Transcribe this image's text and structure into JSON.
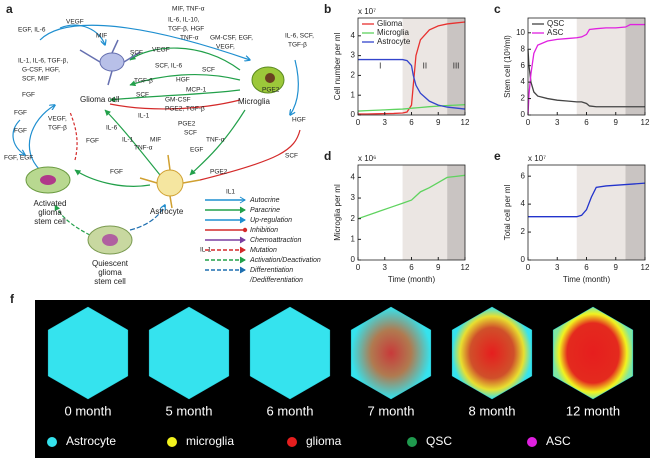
{
  "diagram": {
    "panel_label": "a",
    "nodes": {
      "glioma": "Glioma cell",
      "microglia": "Microglia",
      "astrocyte": "Astrocyte",
      "activated": [
        "Activated",
        "glioma",
        "stem cell"
      ],
      "quiescent": [
        "Quiescent",
        "glioma",
        "stem cell"
      ]
    },
    "edge_labels": [
      "MIF, TNF-α",
      "EGF, IL-6",
      "VEGF",
      "MIF",
      "IL-6, IL-10,",
      "TGF-β, HGF",
      "TNF-α",
      "GM-CSF, EGF,",
      "VEGF,",
      "IL-6, SCF,",
      "TGF-β",
      "IL-1, IL-6, TGF-β,",
      "G-CSF, HGF,",
      "SCF, MIF",
      "SCF",
      "VEGF",
      "SCF",
      "SCF, IL-6",
      "TGF-β",
      "HGF",
      "MCP-1",
      "SCF",
      "GM-CSF",
      "PGE2, TGF-β",
      "IL-1",
      "PGE2",
      "SCF",
      "PGE2",
      "HGF",
      "SCF",
      "FGF",
      "FGF",
      "FGF, EGF",
      "VEGF,",
      "TGF-β",
      "FGF",
      "IL-6",
      "IL-1",
      "TNF-α",
      "MIF",
      "EGF",
      "TNF-α",
      "PGE2",
      "IL1",
      "FGF",
      "IL-1",
      "FGF"
    ],
    "legend": [
      {
        "label": "Autocrine",
        "color": "#1f8fd0"
      },
      {
        "label": "Paracrine",
        "color": "#22a04a"
      },
      {
        "label": "Up-regulation",
        "color": "#1f8fd0"
      },
      {
        "label": "Inhibition",
        "color": "#d42a2a"
      },
      {
        "label": "Chemoattraction",
        "color": "#7a3fa0"
      },
      {
        "label": "Mutation",
        "color": "#d42a2a"
      },
      {
        "label": "Activation/Deactivation",
        "color": "#22a04a"
      },
      {
        "label": "Differentiation",
        "color": "#1f6fb0"
      }
    ],
    "legend_continuation": "/Dedifferentiation"
  },
  "chart_data": [
    {
      "type": "line",
      "panel_label": "b",
      "y_label": "Cell number per ml",
      "y_multiplier": "x 10⁷",
      "x": [
        0,
        1,
        2,
        3,
        4,
        5,
        5.5,
        6,
        6.2,
        6.5,
        7,
        8,
        9,
        10,
        11,
        12
      ],
      "series": [
        {
          "name": "Glioma",
          "color": "#e8312f",
          "values": [
            0.05,
            0.05,
            0.06,
            0.07,
            0.08,
            0.1,
            0.15,
            0.5,
            1.5,
            3.0,
            3.8,
            4.3,
            4.5,
            4.6,
            4.65,
            4.7
          ]
        },
        {
          "name": "Microglia",
          "color": "#5fd35f",
          "values": [
            0.2,
            0.22,
            0.24,
            0.26,
            0.28,
            0.3,
            0.32,
            0.34,
            0.35,
            0.36,
            0.38,
            0.42,
            0.45,
            0.48,
            0.5,
            0.52
          ]
        },
        {
          "name": "Astrocyte",
          "color": "#3344cc",
          "values": [
            2.8,
            2.8,
            2.8,
            2.8,
            2.8,
            2.8,
            2.75,
            2.5,
            2.0,
            1.5,
            1.1,
            0.7,
            0.5,
            0.4,
            0.35,
            0.3
          ]
        }
      ],
      "xlim": [
        0,
        12
      ],
      "xticks": [
        0,
        3,
        6,
        9,
        12
      ],
      "ylim": [
        0,
        4.9
      ],
      "yticks": [
        0,
        1,
        2,
        3,
        4
      ],
      "shaded_regions": [
        [
          5,
          10
        ],
        [
          10,
          12
        ]
      ],
      "shade_colors": [
        "#ebe6e3",
        "#c9c4c2"
      ],
      "annotations": [
        "I",
        "II",
        "III"
      ],
      "legend": "upper left"
    },
    {
      "type": "line",
      "panel_label": "c",
      "y_label": "Stem cell (10³/ml)",
      "x": [
        0,
        0.1,
        0.3,
        0.6,
        1,
        2,
        3,
        4,
        5,
        5.5,
        6,
        6.3,
        7,
        8,
        9,
        10,
        10.5,
        11,
        12
      ],
      "series": [
        {
          "name": "QSC",
          "color": "#444444",
          "values": [
            8,
            6,
            4,
            2.8,
            2.3,
            2,
            1.8,
            1.7,
            1.6,
            1.6,
            1.4,
            1.1,
            1.0,
            1.0,
            1.0,
            1.0,
            1.0,
            1.0,
            1.0
          ]
        },
        {
          "name": "ASC",
          "color": "#e020e0",
          "values": [
            0,
            2.5,
            5,
            7.5,
            8.5,
            9,
            9.2,
            9.3,
            9.4,
            9.5,
            9.8,
            10.4,
            10.5,
            10.6,
            10.6,
            10.7,
            11.0,
            11.0,
            11.0
          ]
        }
      ],
      "xlim": [
        0,
        12
      ],
      "xticks": [
        0,
        3,
        6,
        9,
        12
      ],
      "ylim": [
        0,
        11.8
      ],
      "yticks": [
        0,
        2,
        4,
        6,
        8,
        10
      ],
      "shaded_regions": [
        [
          5,
          10
        ],
        [
          10,
          12
        ]
      ],
      "shade_colors": [
        "#ebe6e3",
        "#c9c4c2"
      ],
      "legend": "upper left"
    },
    {
      "type": "line",
      "panel_label": "d",
      "y_label": "Microglia per ml",
      "y_multiplier": "x 10⁶",
      "x_label": "Time (month)",
      "x": [
        0,
        2,
        4,
        5,
        6,
        7,
        8,
        9,
        10,
        11,
        12
      ],
      "series": [
        {
          "color": "#5fd35f",
          "values": [
            2.0,
            2.3,
            2.6,
            2.75,
            2.9,
            3.3,
            3.5,
            3.75,
            4.0,
            4.05,
            4.1
          ]
        }
      ],
      "xlim": [
        0,
        12
      ],
      "xticks": [
        0,
        3,
        6,
        9,
        12
      ],
      "ylim": [
        0,
        4.6
      ],
      "yticks": [
        0,
        1,
        2,
        3,
        4
      ],
      "shaded_regions": [
        [
          5,
          10
        ],
        [
          10,
          12
        ]
      ],
      "shade_colors": [
        "#ebe6e3",
        "#c9c4c2"
      ]
    },
    {
      "type": "line",
      "panel_label": "e",
      "y_label": "Total cell per ml",
      "y_multiplier": "x 10⁷",
      "x_label": "Time (month)",
      "x": [
        0,
        2,
        4,
        5,
        5.5,
        6,
        6.5,
        7,
        8,
        10,
        12
      ],
      "series": [
        {
          "color": "#2233cc",
          "values": [
            3.1,
            3.1,
            3.1,
            3.1,
            3.2,
            3.6,
            4.5,
            5.2,
            5.3,
            5.4,
            5.5
          ]
        }
      ],
      "xlim": [
        0,
        12
      ],
      "xticks": [
        0,
        3,
        6,
        9,
        12
      ],
      "ylim": [
        0,
        6.8
      ],
      "yticks": [
        0,
        2,
        4,
        6
      ],
      "shaded_regions": [
        [
          5,
          10
        ],
        [
          10,
          12
        ]
      ],
      "shade_colors": [
        "#ebe6e3",
        "#c9c4c2"
      ]
    }
  ],
  "images": {
    "panel_label": "f",
    "captions": [
      "0 month",
      "5 month",
      "6 month",
      "7 month",
      "8 month",
      "12 month"
    ],
    "legend": [
      {
        "label": "Astrocyte",
        "color": "#35e3ee"
      },
      {
        "label": "microglia",
        "color": "#f2f21e"
      },
      {
        "label": "glioma",
        "color": "#e61e1e"
      },
      {
        "label": "QSC",
        "color": "#1f9a4e"
      },
      {
        "label": "ASC",
        "color": "#e020e0"
      }
    ]
  }
}
